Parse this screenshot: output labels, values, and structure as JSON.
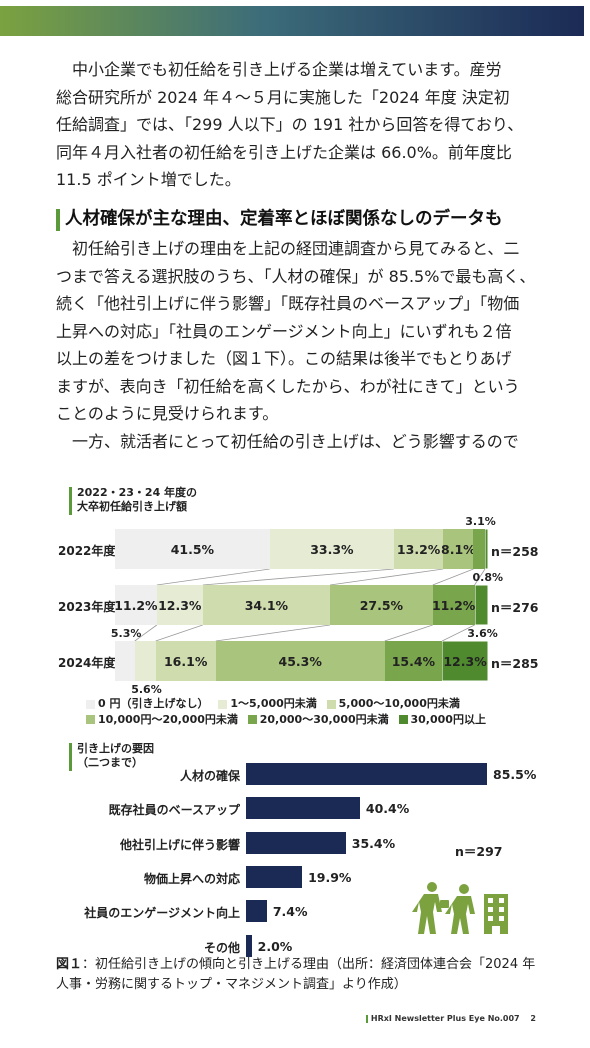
{
  "para1": [
    "　中小企業でも初任給を引き上げる企業は増えています。産労",
    "総合研究所が 2024 年４～５月に実施した「2024 年度 決定初",
    "任給調査」では、「299 人以下」の 191 社から回答を得ており、",
    "同年４月入社者の初任給を引き上げた企業は 66.0%。前年度比",
    "11.5 ポイント増でした。"
  ],
  "heading": "人材確保が主な理由、定着率とほぼ関係なしのデータも",
  "para2": [
    "　初任給引き上げの理由を上記の経団連調査から見てみると、二",
    "つまで答える選択肢のうち、「人材の確保」が 85.5%で最も高く、",
    "続く「他社引上げに伴う影響」「既存社員のベースアップ」「物価",
    "上昇への対応」「社員のエンゲージメント向上」にいずれも２倍",
    "以上の差をつけました（図１下）。この結果は後半でもとりあげ",
    "ますが、表向き「初任給を高くしたから、わが社にきて」という",
    "ことのように見受けられます。",
    "　一方、就活者にとって初任給の引き上げは、どう影響するので"
  ],
  "chart1": {
    "title_lines": [
      "2022・23・24 年度の",
      "大卒初任給引き上げ額"
    ],
    "rows": [
      {
        "label": "2022年度",
        "n": "n＝258",
        "values": [
          41.5,
          33.3,
          13.2,
          8.1,
          3.1,
          0.8
        ],
        "labels": [
          "41.5%",
          "33.3%",
          "13.2%",
          "8.1%",
          "3.1%",
          "0.8%"
        ]
      },
      {
        "label": "2023年度",
        "n": "n＝276",
        "values": [
          11.2,
          12.3,
          34.1,
          27.5,
          11.2,
          3.6
        ],
        "labels": [
          "11.2%",
          "12.3%",
          "34.1%",
          "27.5%",
          "11.2%",
          "3.6%"
        ]
      },
      {
        "label": "2024年度",
        "n": "n＝285",
        "values": [
          5.3,
          5.6,
          16.1,
          45.3,
          15.4,
          12.3
        ],
        "labels": [
          "5.3%",
          "5.6%",
          "16.1%",
          "45.3%",
          "15.4%",
          "12.3%"
        ]
      }
    ],
    "colors": [
      "#efefef",
      "#e6ecd4",
      "#cfdcae",
      "#a9c47c",
      "#79a64c",
      "#4f8a2f"
    ],
    "legend": [
      "0 円（引き上げなし）",
      "1～5,000円未満",
      "5,000～10,000円未満",
      "10,000円～20,000円未満",
      "20,000～30,000円未満",
      "30,000円以上"
    ]
  },
  "chart2": {
    "title_lines": [
      "引き上げの要因",
      "（二つまで）"
    ],
    "n": "n＝297",
    "bar_color": "#1b2a55",
    "items": [
      {
        "label": "人材の確保",
        "value": 85.5,
        "text": "85.5%"
      },
      {
        "label": "既存社員のベースアップ",
        "value": 40.4,
        "text": "40.4%"
      },
      {
        "label": "他社引上げに伴う影響",
        "value": 35.4,
        "text": "35.4%"
      },
      {
        "label": "物価上昇への対応",
        "value": 19.9,
        "text": "19.9%"
      },
      {
        "label": "社員のエンゲージメント向上",
        "value": 7.4,
        "text": "7.4%"
      },
      {
        "label": "その他",
        "value": 2.0,
        "text": "2.0%"
      }
    ]
  },
  "caption": {
    "label": "図１",
    "text": "：初任給引き上げの傾向と引き上げる理由（出所：経済団体連合会「2024 年人事・労務に関するトップ・マネジメント調査」より作成）"
  },
  "footer": {
    "brand": "HRxI Newsletter Plus Eye",
    "issue": "No.007",
    "page": "2"
  },
  "chart_data": [
    {
      "type": "bar",
      "stacked": true,
      "orientation": "horizontal",
      "title": "2022・23・24 年度の大卒初任給引き上げ額",
      "categories": [
        "2022年度",
        "2023年度",
        "2024年度"
      ],
      "series": [
        {
          "name": "0 円（引き上げなし）",
          "values": [
            41.5,
            11.2,
            5.3
          ]
        },
        {
          "name": "1～5,000円未満",
          "values": [
            33.3,
            12.3,
            5.6
          ]
        },
        {
          "name": "5,000～10,000円未満",
          "values": [
            13.2,
            34.1,
            16.1
          ]
        },
        {
          "name": "10,000円～20,000円未満",
          "values": [
            8.1,
            27.5,
            45.3
          ]
        },
        {
          "name": "20,000～30,000円未満",
          "values": [
            3.1,
            11.2,
            15.4
          ]
        },
        {
          "name": "30,000円以上",
          "values": [
            0.8,
            3.6,
            12.3
          ]
        }
      ],
      "n": [
        "n＝258",
        "n＝276",
        "n＝285"
      ]
    },
    {
      "type": "bar",
      "orientation": "horizontal",
      "title": "引き上げの要因（二つまで）",
      "categories": [
        "人材の確保",
        "既存社員のベースアップ",
        "他社引上げに伴う影響",
        "物価上昇への対応",
        "社員のエンゲージメント向上",
        "その他"
      ],
      "values": [
        85.5,
        40.4,
        35.4,
        19.9,
        7.4,
        2.0
      ],
      "n": "n＝297"
    }
  ]
}
